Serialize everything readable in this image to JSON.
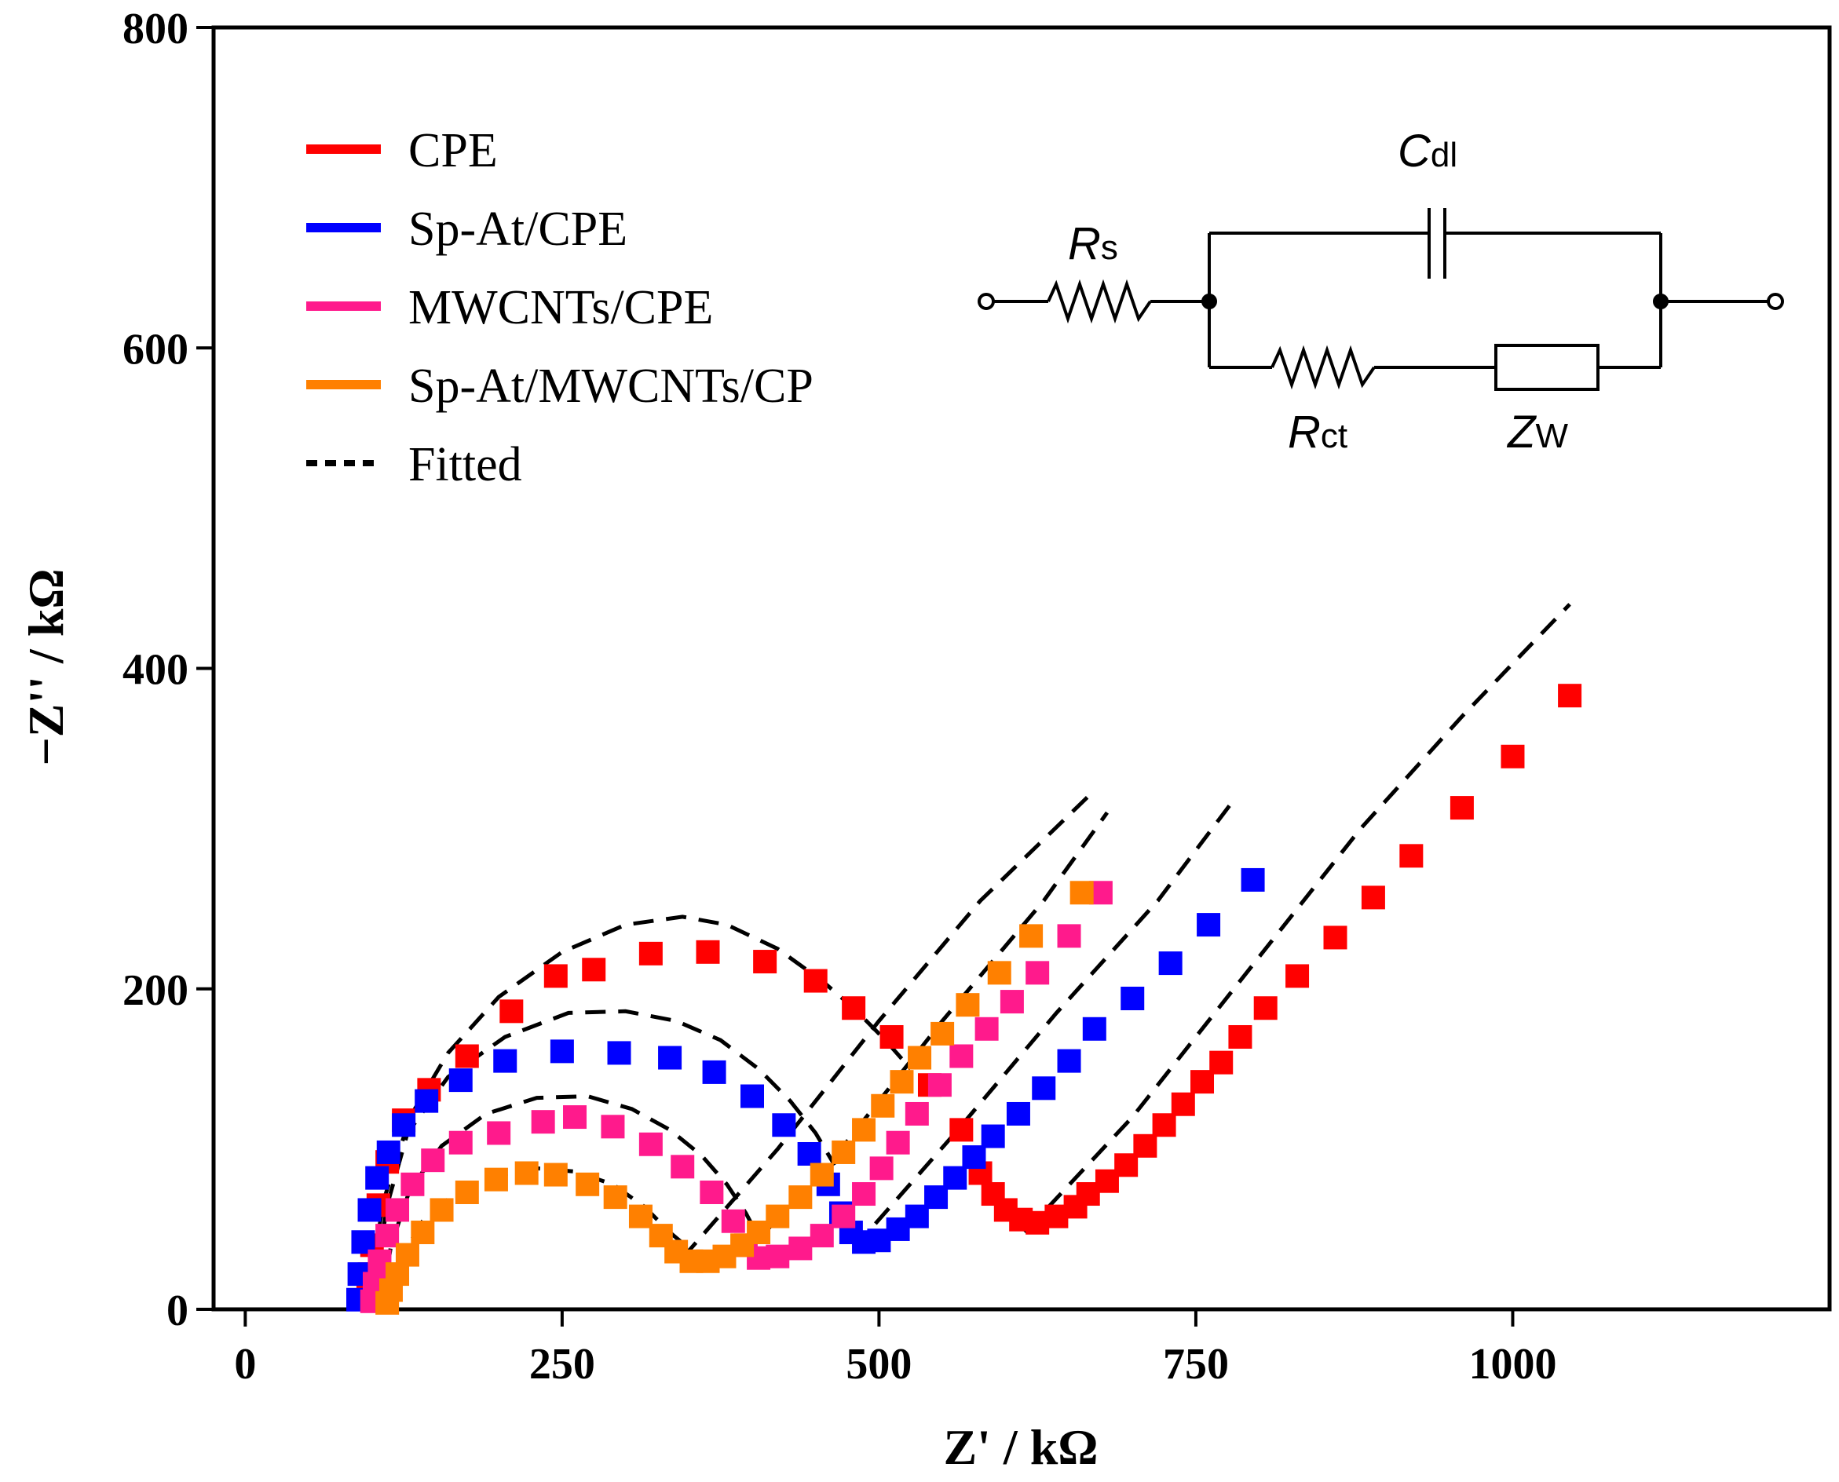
{
  "chart_data": {
    "type": "scatter",
    "xlabel": "Z' / kΩ",
    "ylabel": "−Z'' / kΩ",
    "xlim": [
      -25,
      1250
    ],
    "ylim": [
      0,
      800
    ],
    "x_ticks": [
      0,
      250,
      500,
      750,
      1000
    ],
    "y_ticks": [
      0,
      200,
      400,
      600,
      800
    ],
    "x_tick_labels": [
      "0",
      "250",
      "500",
      "750",
      "1000"
    ],
    "y_tick_labels": [
      "0",
      "200",
      "400",
      "600",
      "800"
    ],
    "grid": false,
    "legend_position": "top-left",
    "legend": [
      {
        "label": "CPE",
        "color": "#ff0000",
        "style": "solid"
      },
      {
        "label": "Sp-At/CPE",
        "color": "#0000ff",
        "style": "solid"
      },
      {
        "label": "MWCNTs/CPE",
        "color": "#ff1a8c",
        "style": "solid"
      },
      {
        "label": "Sp-At/MWCNTs/CP",
        "color": "#ff8000",
        "style": "solid"
      },
      {
        "label": "Fitted",
        "color": "#000000",
        "style": "dotted"
      }
    ],
    "circuit": {
      "labels": {
        "Rs": {
          "main": "R",
          "sub": "s"
        },
        "Cdl": {
          "main": "C",
          "sub": "dl"
        },
        "Rct": {
          "main": "R",
          "sub": "ct"
        },
        "Zw": {
          "main": "Z",
          "sub": "W"
        }
      }
    },
    "series": [
      {
        "name": "CPE",
        "color": "#ff0000",
        "marker": "square",
        "points": [
          [
            97,
            8
          ],
          [
            98,
            22
          ],
          [
            100,
            40
          ],
          [
            105,
            65
          ],
          [
            112,
            92
          ],
          [
            125,
            118
          ],
          [
            145,
            137
          ],
          [
            175,
            158
          ],
          [
            210,
            186
          ],
          [
            245,
            208
          ],
          [
            275,
            212
          ],
          [
            320,
            222
          ],
          [
            365,
            223
          ],
          [
            410,
            217
          ],
          [
            450,
            205
          ],
          [
            480,
            188
          ],
          [
            510,
            170
          ],
          [
            540,
            140
          ],
          [
            565,
            112
          ],
          [
            580,
            85
          ],
          [
            590,
            72
          ],
          [
            600,
            62
          ],
          [
            612,
            56
          ],
          [
            625,
            54
          ],
          [
            640,
            58
          ],
          [
            655,
            64
          ],
          [
            665,
            72
          ],
          [
            680,
            80
          ],
          [
            695,
            90
          ],
          [
            710,
            102
          ],
          [
            725,
            115
          ],
          [
            740,
            128
          ],
          [
            755,
            142
          ],
          [
            770,
            154
          ],
          [
            785,
            170
          ],
          [
            805,
            188
          ],
          [
            830,
            208
          ],
          [
            860,
            232
          ],
          [
            890,
            257
          ],
          [
            920,
            283
          ],
          [
            960,
            313
          ],
          [
            1000,
            345
          ],
          [
            1045,
            383
          ]
        ]
      },
      {
        "name": "Sp-At/CPE",
        "color": "#0000ff",
        "marker": "square",
        "points": [
          [
            89,
            6
          ],
          [
            90,
            22
          ],
          [
            93,
            42
          ],
          [
            98,
            62
          ],
          [
            104,
            82
          ],
          [
            113,
            98
          ],
          [
            125,
            115
          ],
          [
            143,
            130
          ],
          [
            170,
            143
          ],
          [
            205,
            155
          ],
          [
            250,
            161
          ],
          [
            295,
            160
          ],
          [
            335,
            157
          ],
          [
            370,
            148
          ],
          [
            400,
            133
          ],
          [
            425,
            115
          ],
          [
            445,
            97
          ],
          [
            460,
            78
          ],
          [
            470,
            60
          ],
          [
            478,
            48
          ],
          [
            488,
            42
          ],
          [
            500,
            43
          ],
          [
            515,
            50
          ],
          [
            530,
            58
          ],
          [
            545,
            70
          ],
          [
            560,
            82
          ],
          [
            575,
            95
          ],
          [
            590,
            108
          ],
          [
            610,
            122
          ],
          [
            630,
            138
          ],
          [
            650,
            155
          ],
          [
            670,
            175
          ],
          [
            700,
            194
          ],
          [
            730,
            216
          ],
          [
            760,
            240
          ],
          [
            795,
            268
          ]
        ]
      },
      {
        "name": "MWCNTs/CPE",
        "color": "#ff1a8c",
        "marker": "square",
        "points": [
          [
            100,
            5
          ],
          [
            102,
            16
          ],
          [
            106,
            30
          ],
          [
            112,
            46
          ],
          [
            120,
            62
          ],
          [
            132,
            78
          ],
          [
            148,
            93
          ],
          [
            170,
            104
          ],
          [
            200,
            110
          ],
          [
            235,
            117
          ],
          [
            260,
            120
          ],
          [
            290,
            114
          ],
          [
            320,
            103
          ],
          [
            345,
            89
          ],
          [
            368,
            73
          ],
          [
            385,
            55
          ],
          [
            395,
            40
          ],
          [
            405,
            32
          ],
          [
            420,
            33
          ],
          [
            438,
            38
          ],
          [
            455,
            46
          ],
          [
            472,
            58
          ],
          [
            488,
            72
          ],
          [
            502,
            88
          ],
          [
            515,
            104
          ],
          [
            530,
            122
          ],
          [
            548,
            140
          ],
          [
            565,
            158
          ],
          [
            585,
            175
          ],
          [
            605,
            192
          ],
          [
            625,
            210
          ],
          [
            650,
            233
          ],
          [
            675,
            260
          ]
        ]
      },
      {
        "name": "Sp-At/MWCNTs/CP",
        "color": "#ff8000",
        "marker": "square",
        "points": [
          [
            112,
            4
          ],
          [
            115,
            12
          ],
          [
            120,
            22
          ],
          [
            128,
            34
          ],
          [
            140,
            48
          ],
          [
            155,
            62
          ],
          [
            175,
            73
          ],
          [
            198,
            81
          ],
          [
            222,
            85
          ],
          [
            245,
            84
          ],
          [
            270,
            78
          ],
          [
            292,
            70
          ],
          [
            312,
            58
          ],
          [
            328,
            46
          ],
          [
            340,
            36
          ],
          [
            352,
            30
          ],
          [
            365,
            30
          ],
          [
            378,
            33
          ],
          [
            392,
            40
          ],
          [
            405,
            48
          ],
          [
            420,
            58
          ],
          [
            438,
            70
          ],
          [
            455,
            84
          ],
          [
            472,
            98
          ],
          [
            488,
            112
          ],
          [
            503,
            127
          ],
          [
            518,
            142
          ],
          [
            532,
            157
          ],
          [
            550,
            172
          ],
          [
            570,
            190
          ],
          [
            595,
            210
          ],
          [
            620,
            233
          ],
          [
            660,
            260
          ]
        ]
      },
      {
        "name": "Fitted",
        "color": "#000000",
        "dashed": true,
        "points": [
          [
            95,
            5
          ],
          [
            110,
            70
          ],
          [
            130,
            120
          ],
          [
            160,
            160
          ],
          [
            200,
            195
          ],
          [
            250,
            223
          ],
          [
            300,
            240
          ],
          [
            345,
            245
          ],
          [
            380,
            240
          ],
          [
            420,
            225
          ],
          [
            455,
            205
          ],
          [
            480,
            188
          ],
          [
            505,
            168
          ],
          [
            525,
            150
          ]
        ],
        "points_b": [
          [
            100,
            5
          ],
          [
            112,
            65
          ],
          [
            128,
            110
          ],
          [
            160,
            145
          ],
          [
            205,
            170
          ],
          [
            255,
            185
          ],
          [
            300,
            186
          ],
          [
            340,
            180
          ],
          [
            375,
            168
          ],
          [
            405,
            150
          ],
          [
            430,
            130
          ],
          [
            450,
            110
          ],
          [
            465,
            90
          ]
        ],
        "points_c": [
          [
            108,
            5
          ],
          [
            115,
            40
          ],
          [
            130,
            75
          ],
          [
            155,
            102
          ],
          [
            190,
            122
          ],
          [
            230,
            132
          ],
          [
            270,
            133
          ],
          [
            305,
            125
          ],
          [
            335,
            112
          ],
          [
            360,
            96
          ],
          [
            380,
            78
          ],
          [
            395,
            60
          ],
          [
            405,
            45
          ]
        ],
        "points_d": [
          [
            118,
            5
          ],
          [
            125,
            35
          ],
          [
            140,
            55
          ],
          [
            165,
            72
          ],
          [
            195,
            83
          ],
          [
            230,
            88
          ],
          [
            260,
            86
          ],
          [
            290,
            78
          ],
          [
            315,
            64
          ],
          [
            335,
            48
          ],
          [
            350,
            38
          ]
        ],
        "lines": [
          [
            [
              345,
              32
            ],
            [
              420,
              100
            ],
            [
              500,
              180
            ],
            [
              580,
              255
            ],
            [
              665,
              320
            ]
          ],
          [
            [
              395,
              35
            ],
            [
              470,
              100
            ],
            [
              550,
              180
            ],
            [
              630,
              255
            ],
            [
              680,
              310
            ]
          ],
          [
            [
              480,
              38
            ],
            [
              560,
              110
            ],
            [
              640,
              185
            ],
            [
              720,
              255
            ],
            [
              780,
              318
            ]
          ],
          [
            [
              615,
              48
            ],
            [
              700,
              120
            ],
            [
              790,
              210
            ],
            [
              880,
              300
            ],
            [
              960,
              370
            ],
            [
              1045,
              440
            ]
          ]
        ]
      }
    ]
  }
}
